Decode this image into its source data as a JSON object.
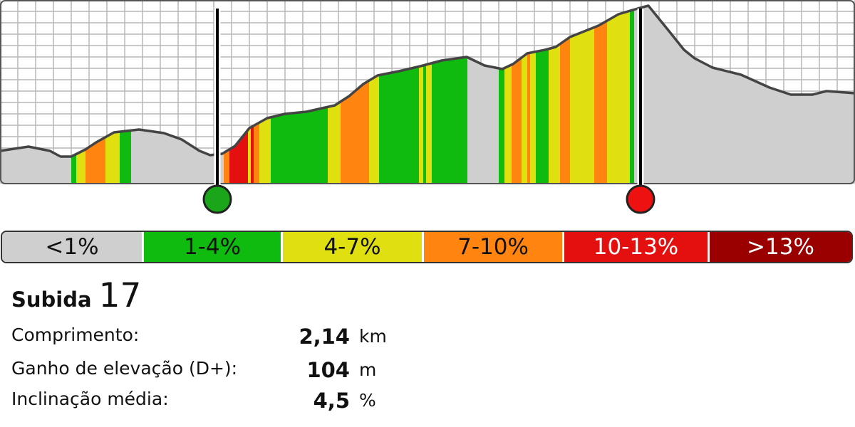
{
  "colors": {
    "lt1": "#cfcfcf",
    "g1_4": "#10bb10",
    "g4_7": "#e0e010",
    "g7_10": "#ff8410",
    "g10_13": "#e41010",
    "gt13": "#9a0000",
    "grid": "#b5b5b5",
    "outline": "#444444",
    "start_marker": "#1aa51a",
    "end_marker": "#ee1111"
  },
  "chart_data": {
    "type": "area",
    "x_range": [
      0,
      1200
    ],
    "y_range": [
      0,
      260
    ],
    "grid": true,
    "profile": [
      [
        0,
        212
      ],
      [
        40,
        206
      ],
      [
        70,
        212
      ],
      [
        85,
        220
      ],
      [
        100,
        220
      ],
      [
        120,
        210
      ],
      [
        135,
        200
      ],
      [
        160,
        186
      ],
      [
        195,
        182
      ],
      [
        230,
        187
      ],
      [
        255,
        196
      ],
      [
        280,
        212
      ],
      [
        295,
        218
      ],
      [
        312,
        216
      ],
      [
        330,
        205
      ],
      [
        350,
        180
      ],
      [
        375,
        166
      ],
      [
        400,
        160
      ],
      [
        430,
        157
      ],
      [
        470,
        148
      ],
      [
        490,
        135
      ],
      [
        510,
        118
      ],
      [
        530,
        106
      ],
      [
        560,
        100
      ],
      [
        590,
        93
      ],
      [
        620,
        85
      ],
      [
        655,
        80
      ],
      [
        680,
        92
      ],
      [
        705,
        97
      ],
      [
        720,
        90
      ],
      [
        740,
        75
      ],
      [
        765,
        70
      ],
      [
        780,
        66
      ],
      [
        800,
        52
      ],
      [
        840,
        36
      ],
      [
        868,
        20
      ],
      [
        895,
        12
      ],
      [
        910,
        8
      ],
      [
        940,
        45
      ],
      [
        960,
        70
      ],
      [
        975,
        82
      ],
      [
        1000,
        95
      ],
      [
        1040,
        105
      ],
      [
        1080,
        123
      ],
      [
        1110,
        133
      ],
      [
        1140,
        133
      ],
      [
        1160,
        128
      ],
      [
        1200,
        131
      ]
    ],
    "bands": [
      {
        "x0": 100,
        "x1": 107,
        "grade": "g1_4"
      },
      {
        "x0": 107,
        "x1": 120,
        "grade": "g4_7"
      },
      {
        "x0": 120,
        "x1": 148,
        "grade": "g7_10"
      },
      {
        "x0": 148,
        "x1": 168,
        "grade": "g4_7"
      },
      {
        "x0": 168,
        "x1": 184,
        "grade": "g1_4"
      },
      {
        "x0": 314,
        "x1": 322,
        "grade": "g7_10"
      },
      {
        "x0": 322,
        "x1": 348,
        "grade": "g10_13"
      },
      {
        "x0": 348,
        "x1": 352,
        "grade": "g4_7"
      },
      {
        "x0": 352,
        "x1": 356,
        "grade": "g10_13"
      },
      {
        "x0": 356,
        "x1": 364,
        "grade": "g7_10"
      },
      {
        "x0": 364,
        "x1": 380,
        "grade": "g4_7"
      },
      {
        "x0": 380,
        "x1": 460,
        "grade": "g1_4"
      },
      {
        "x0": 460,
        "x1": 478,
        "grade": "g4_7"
      },
      {
        "x0": 478,
        "x1": 518,
        "grade": "g7_10"
      },
      {
        "x0": 518,
        "x1": 532,
        "grade": "g4_7"
      },
      {
        "x0": 532,
        "x1": 588,
        "grade": "g1_4"
      },
      {
        "x0": 588,
        "x1": 594,
        "grade": "g4_7"
      },
      {
        "x0": 594,
        "x1": 598,
        "grade": "g1_4"
      },
      {
        "x0": 598,
        "x1": 606,
        "grade": "g4_7"
      },
      {
        "x0": 606,
        "x1": 656,
        "grade": "g1_4"
      },
      {
        "x0": 700,
        "x1": 708,
        "grade": "g1_4"
      },
      {
        "x0": 708,
        "x1": 718,
        "grade": "g4_7"
      },
      {
        "x0": 718,
        "x1": 732,
        "grade": "g7_10"
      },
      {
        "x0": 732,
        "x1": 740,
        "grade": "g4_7"
      },
      {
        "x0": 740,
        "x1": 744,
        "grade": "g7_10"
      },
      {
        "x0": 744,
        "x1": 752,
        "grade": "g4_7"
      },
      {
        "x0": 752,
        "x1": 770,
        "grade": "g1_4"
      },
      {
        "x0": 770,
        "x1": 786,
        "grade": "g4_7"
      },
      {
        "x0": 786,
        "x1": 800,
        "grade": "g7_10"
      },
      {
        "x0": 800,
        "x1": 834,
        "grade": "g4_7"
      },
      {
        "x0": 834,
        "x1": 852,
        "grade": "g7_10"
      },
      {
        "x0": 852,
        "x1": 884,
        "grade": "g4_7"
      },
      {
        "x0": 884,
        "x1": 890,
        "grade": "g1_4"
      }
    ],
    "climb_start_x": 305,
    "climb_end_x": 899,
    "legend": [
      {
        "label": "<1%",
        "key": "lt1",
        "text_color": "#111111"
      },
      {
        "label": "1-4%",
        "key": "g1_4",
        "text_color": "#111111"
      },
      {
        "label": "4-7%",
        "key": "g4_7",
        "text_color": "#111111"
      },
      {
        "label": "7-10%",
        "key": "g7_10",
        "text_color": "#111111"
      },
      {
        "label": "10-13%",
        "key": "g10_13",
        "text_color": "#ffffff"
      },
      {
        "label": ">13%",
        "key": "gt13",
        "text_color": "#ffffff"
      }
    ]
  },
  "climb": {
    "word": "Subida",
    "number": "17"
  },
  "stats": [
    {
      "label": "Comprimento:",
      "value": "2,14",
      "unit": "km"
    },
    {
      "label": "Ganho de elevação (D+):",
      "value": "104",
      "unit": "m"
    },
    {
      "label": "Inclinação média:",
      "value": "4,5",
      "unit": "%"
    }
  ]
}
